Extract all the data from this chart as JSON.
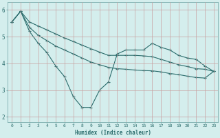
{
  "xlabel": "Humidex (Indice chaleur)",
  "background_color": "#d4eeed",
  "line_color": "#2a6b6b",
  "xlim": [
    -0.5,
    23.5
  ],
  "ylim": [
    1.8,
    6.3
  ],
  "yticks": [
    2,
    3,
    4,
    5,
    6
  ],
  "xticks": [
    0,
    1,
    2,
    3,
    4,
    5,
    6,
    7,
    8,
    9,
    10,
    11,
    12,
    13,
    14,
    15,
    16,
    17,
    18,
    19,
    20,
    21,
    22,
    23
  ],
  "series1": {
    "x": [
      0,
      1,
      2,
      3,
      4,
      5,
      6,
      7,
      8,
      9,
      10,
      11,
      12,
      13,
      14,
      15,
      16,
      17,
      18,
      19,
      20,
      21,
      22,
      23
    ],
    "y": [
      5.55,
      5.95,
      5.2,
      4.75,
      4.4,
      3.9,
      3.5,
      2.75,
      2.35,
      2.35,
      3.0,
      3.3,
      4.35,
      4.5,
      4.5,
      4.5,
      4.75,
      4.6,
      4.5,
      4.3,
      4.2,
      4.15,
      3.9,
      3.7
    ]
  },
  "series2": {
    "x": [
      0,
      1,
      2,
      3,
      4,
      5,
      6,
      7,
      8,
      9,
      10,
      11,
      12,
      13,
      14,
      15,
      16,
      17,
      18,
      19,
      20,
      21,
      22,
      23
    ],
    "y": [
      5.55,
      5.95,
      5.55,
      5.4,
      5.25,
      5.1,
      4.95,
      4.82,
      4.68,
      4.55,
      4.42,
      4.3,
      4.3,
      4.3,
      4.3,
      4.28,
      4.25,
      4.15,
      4.05,
      3.95,
      3.88,
      3.8,
      3.78,
      3.7
    ]
  },
  "series3": {
    "x": [
      0,
      1,
      2,
      3,
      4,
      5,
      6,
      7,
      8,
      9,
      10,
      11,
      12,
      13,
      14,
      15,
      16,
      17,
      18,
      19,
      20,
      21,
      22,
      23
    ],
    "y": [
      5.55,
      5.95,
      5.35,
      5.05,
      4.85,
      4.65,
      4.5,
      4.35,
      4.2,
      4.05,
      3.95,
      3.85,
      3.8,
      3.78,
      3.75,
      3.73,
      3.72,
      3.68,
      3.62,
      3.58,
      3.52,
      3.47,
      3.45,
      3.7
    ]
  }
}
